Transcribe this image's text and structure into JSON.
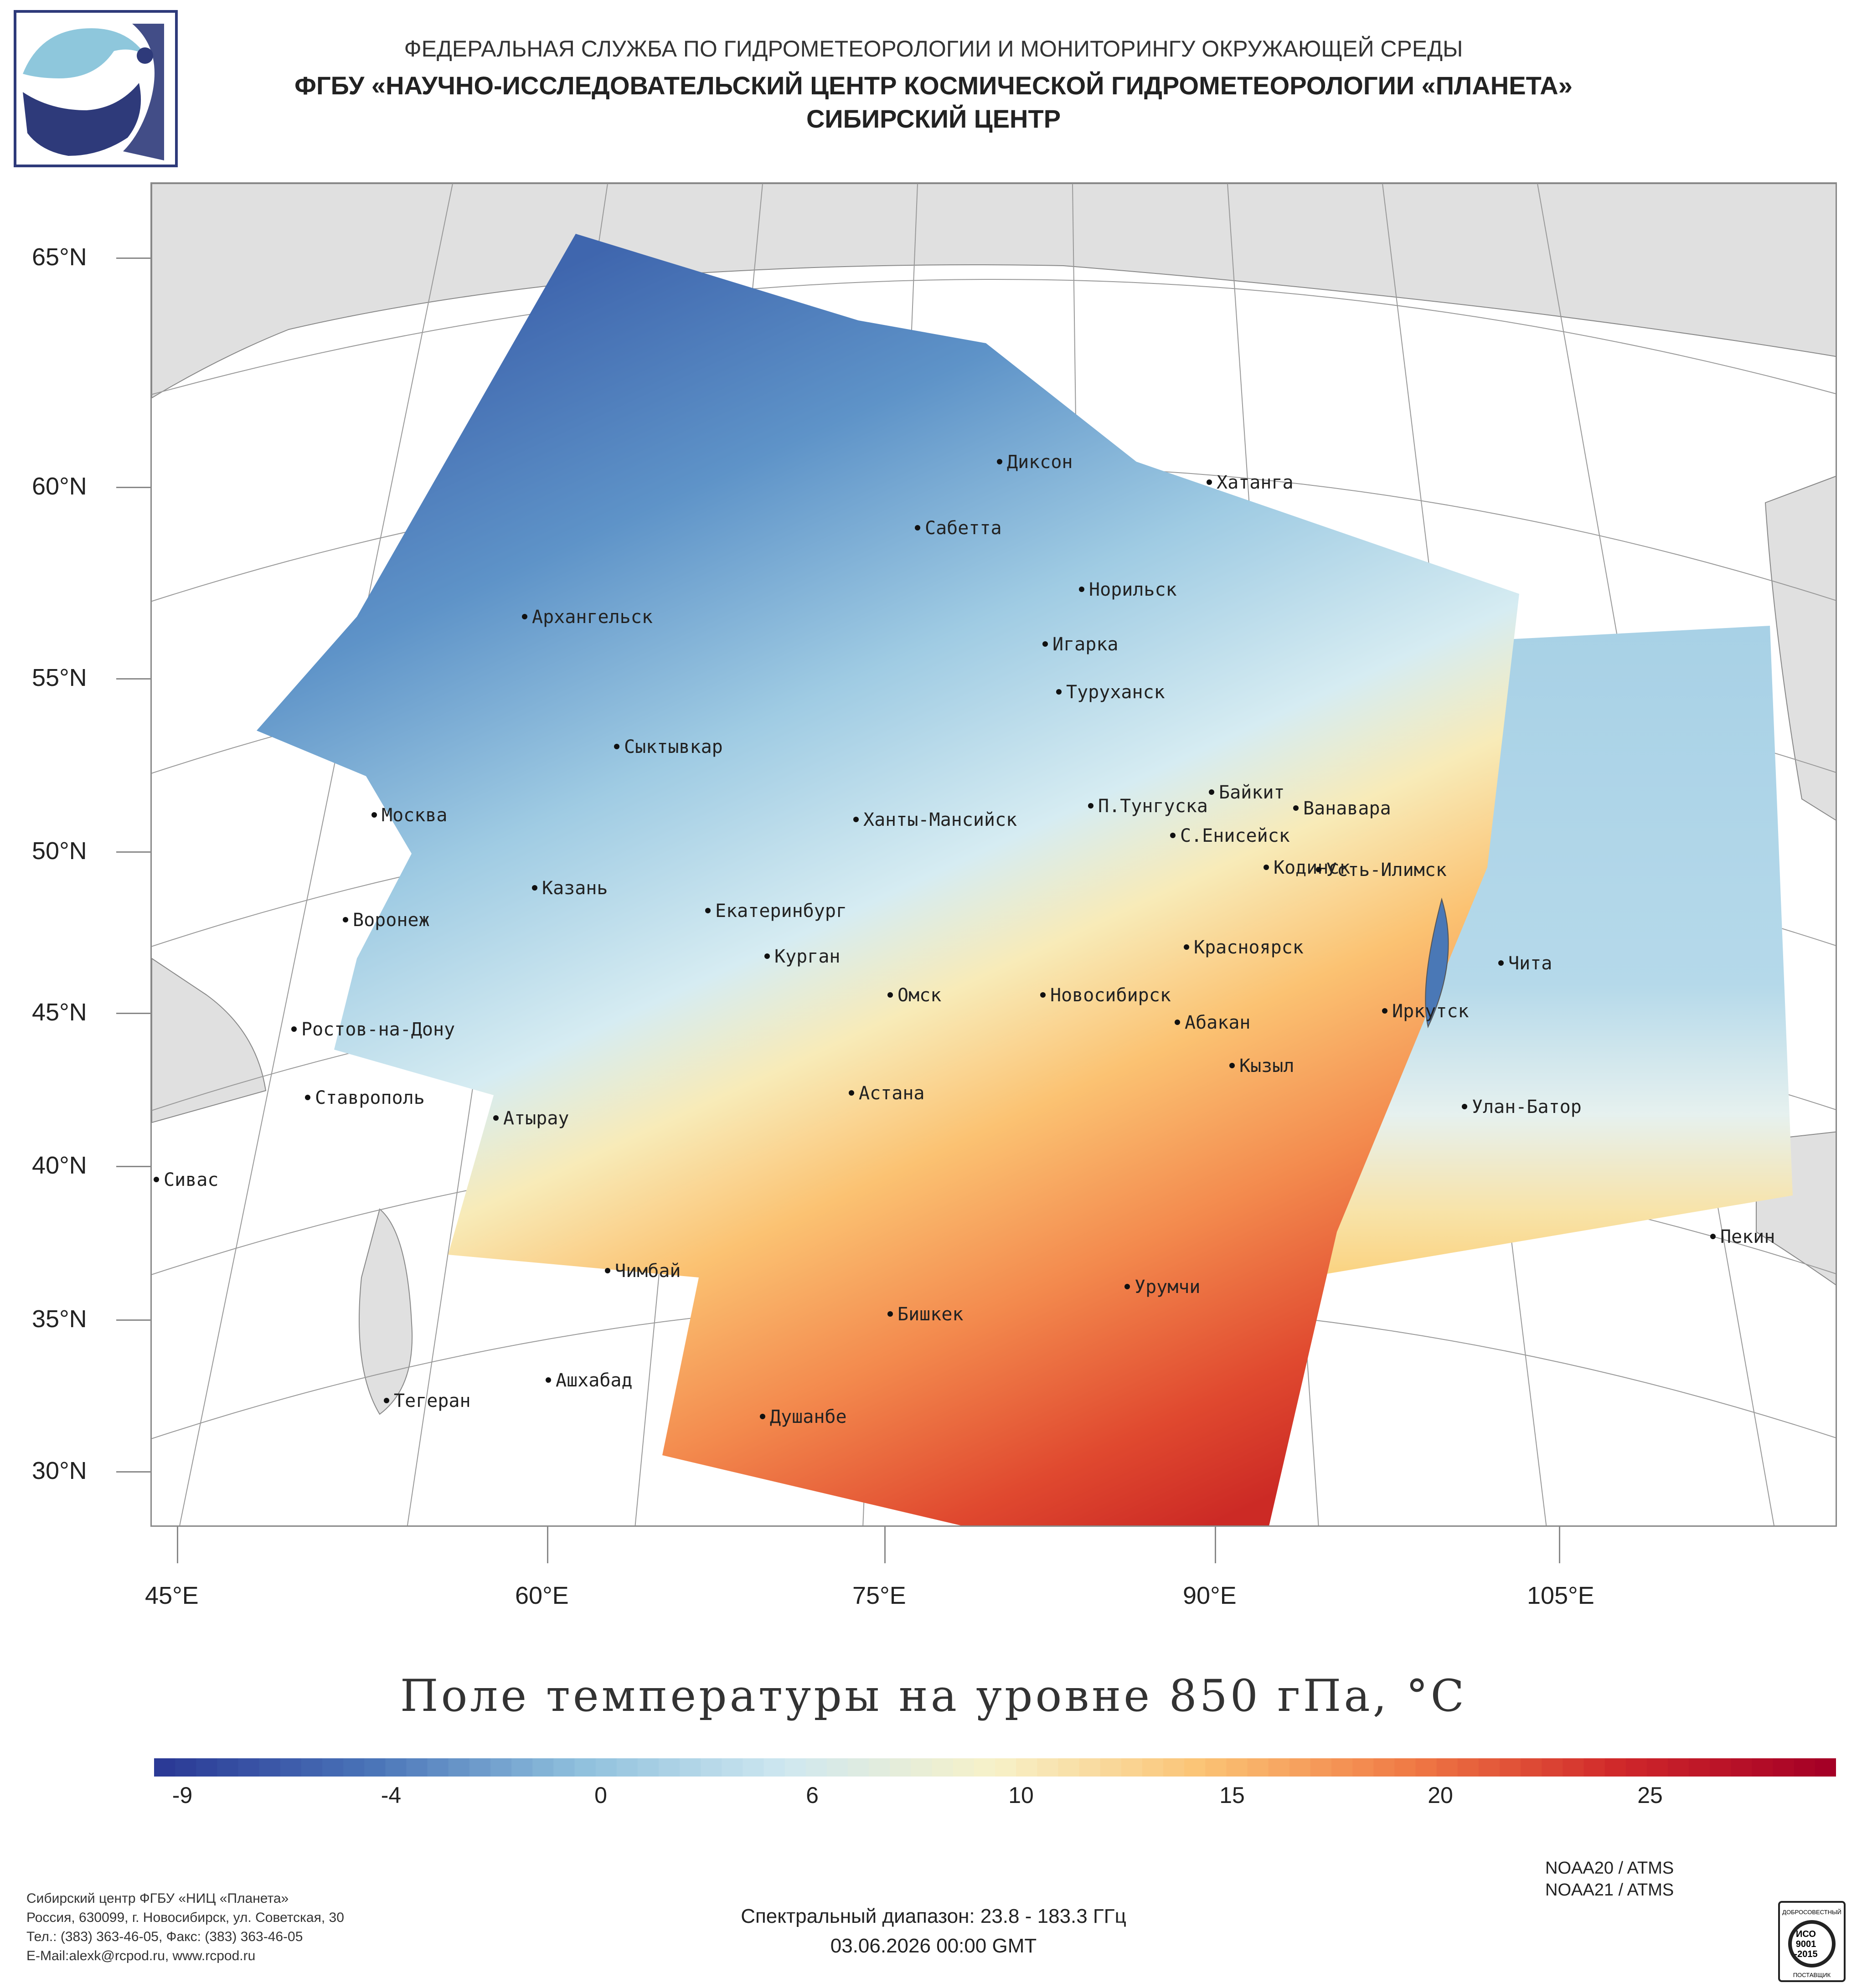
{
  "header": {
    "line1": "ФЕДЕРАЛЬНАЯ СЛУЖБА ПО ГИДРОМЕТЕОРОЛОГИИ И МОНИТОРИНГУ ОКРУЖАЮЩЕЙ СРЕДЫ",
    "line2": "ФГБУ «НАУЧНО-ИССЛЕДОВАТЕЛЬСКИЙ ЦЕНТР КОСМИЧЕСКОЙ ГИДРОМЕТЕОРОЛОГИИ «ПЛАНЕТА»",
    "line3": "СИБИРСКИЙ ЦЕНТР"
  },
  "map": {
    "title": "Поле температуры на уровне 850 гПа, °C",
    "lat_labels": [
      "65°N",
      "60°N",
      "55°N",
      "50°N",
      "45°N",
      "40°N",
      "35°N",
      "30°N"
    ],
    "lon_labels": [
      "45°E",
      "60°E",
      "75°E",
      "90°E",
      "105°E"
    ],
    "cities": [
      "Диксон",
      "Хатанга",
      "Сабетта",
      "Норильск",
      "Архангельск",
      "Игарка",
      "Туруханск",
      "Сыктывкар",
      "Байкит",
      "Москва",
      "Ханты-Мансийск",
      "П.Тунгуска",
      "Ванавара",
      "С.Енисейск",
      "Кодинск",
      "Усть-Илимск",
      "Казань",
      "Екатеринбург",
      "Воронеж",
      "Красноярск",
      "Курган",
      "Чита",
      "Омск",
      "Новосибирск",
      "Иркутск",
      "Абакан",
      "Ростов-на-Дону",
      "Кызыл",
      "Ставрополь",
      "Астана",
      "Улан-Батор",
      "Атырау",
      "Сивас",
      "Пекин",
      "Чимбай",
      "Урумчи",
      "Бишкек",
      "Ашхабад",
      "Тегеран",
      "Душанбе"
    ]
  },
  "colorbar": {
    "ticks": [
      "-9",
      "-4",
      "0",
      "6",
      "10",
      "15",
      "20",
      "25"
    ],
    "colors": [
      "#2b3a96",
      "#4a74b8",
      "#8fc0dd",
      "#cfe8f0",
      "#f7f1c8",
      "#fbc374",
      "#f07a45",
      "#d0282a",
      "#a50026"
    ]
  },
  "footer": {
    "org_line1": "Сибирский центр ФГБУ «НИЦ «Планета»",
    "org_line2": "Россия, 630099, г. Новосибирск, ул. Советская, 30",
    "org_line3": "Тел.: (383) 363-46-05, Факс: (383) 363-46-05",
    "org_line4": "E-Mail:alexk@rcpod.ru, www.rcpod.ru",
    "sat1": "NOAA20 / ATMS",
    "sat2": "NOAA21 / ATMS",
    "spectral": "Спектральный диапазон: 23.8 - 183.3 ГГц",
    "datetime": "03.06.2026 00:00 GMT",
    "iso_top": "ДОБРОСОВЕСТНЫЙ",
    "iso_mid1": "ИСО",
    "iso_mid2": "9001",
    "iso_mid3": "-2015",
    "iso_bottom": "ПОСТАВЩИК"
  }
}
